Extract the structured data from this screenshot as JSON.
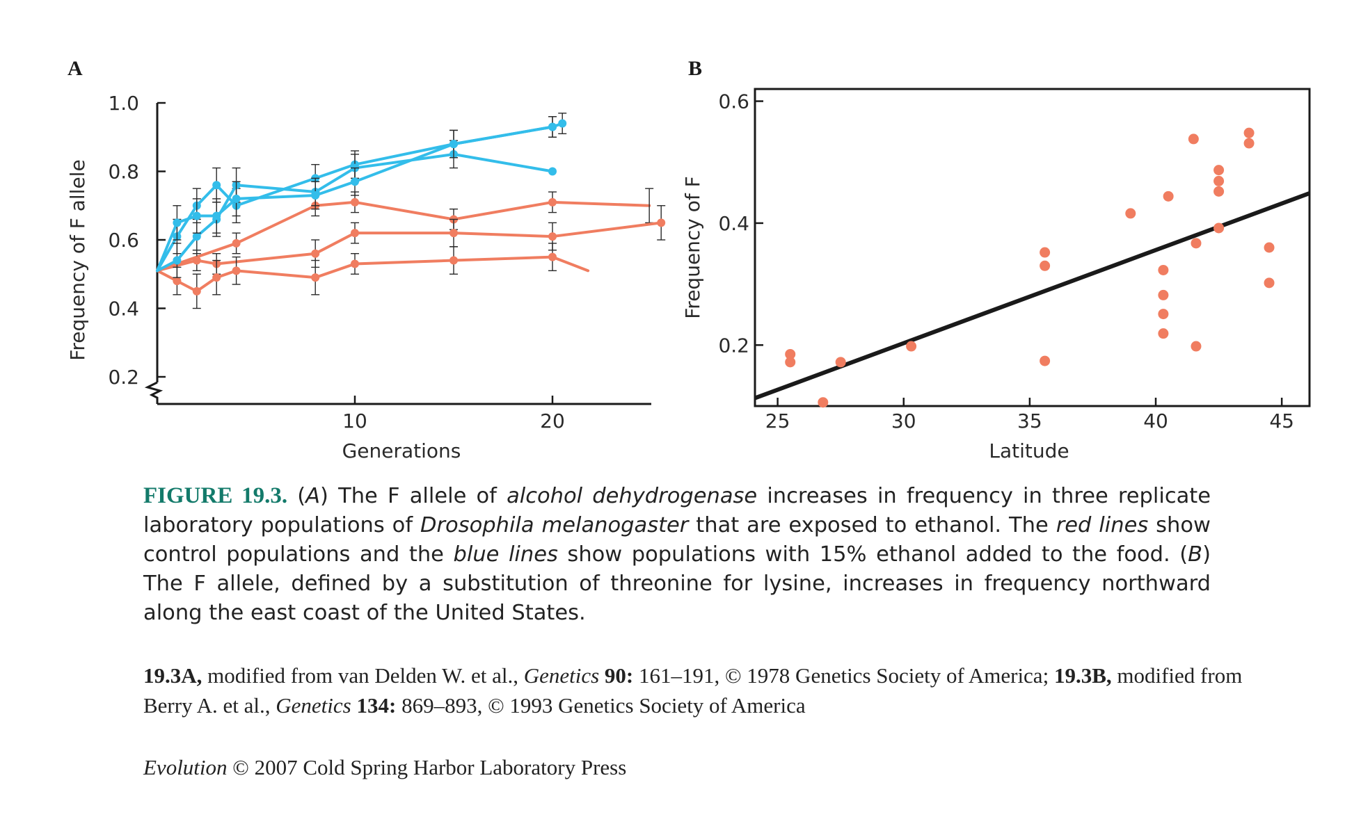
{
  "colors": {
    "red": "#f07d60",
    "blue": "#33bdea",
    "axis": "#1a1a1a",
    "fit": "#1a1a1a",
    "caption_label": "#137a6a"
  },
  "chart_data": [
    {
      "panel": "A",
      "type": "line",
      "xlabel": "Generations",
      "ylabel": "Frequency of F allele",
      "xlim": [
        0,
        25
      ],
      "ylim": [
        0.2,
        1.0
      ],
      "y_axis_break": true,
      "xticks": [
        10,
        20
      ],
      "yticks": [
        0.2,
        0.4,
        0.6,
        0.8,
        1.0
      ],
      "ytick_labels": [
        "0.2",
        "0.4",
        "0.6",
        "0.8",
        "1.0"
      ],
      "series": [
        {
          "group": "control",
          "color": "red",
          "points": [
            [
              0,
              0.51
            ],
            [
              4,
              0.59
            ],
            [
              8,
              0.7
            ],
            [
              10,
              0.71
            ],
            [
              15,
              0.66
            ],
            [
              20,
              0.71
            ],
            [
              24.9,
              0.7
            ]
          ],
          "err": [
            0,
            0.03,
            0.03,
            0.03,
            0.03,
            0.03,
            0.05
          ],
          "end_marker": false
        },
        {
          "group": "control",
          "color": "red",
          "points": [
            [
              0,
              0.51
            ],
            [
              2,
              0.54
            ],
            [
              3,
              0.53
            ],
            [
              8,
              0.56
            ],
            [
              10,
              0.62
            ],
            [
              15,
              0.62
            ],
            [
              20,
              0.61
            ],
            [
              25.5,
              0.65
            ]
          ],
          "err": [
            0,
            0.03,
            0.03,
            0.04,
            0.03,
            0.04,
            0.04,
            0.05
          ],
          "end_marker": true
        },
        {
          "group": "control",
          "color": "red",
          "points": [
            [
              0,
              0.51
            ],
            [
              1,
              0.48
            ],
            [
              2,
              0.45
            ],
            [
              3,
              0.49
            ],
            [
              4,
              0.51
            ],
            [
              8,
              0.49
            ],
            [
              10,
              0.53
            ],
            [
              15,
              0.54
            ],
            [
              20,
              0.55
            ],
            [
              21.8,
              0.51
            ]
          ],
          "err": [
            0,
            0.04,
            0.05,
            0.05,
            0.04,
            0.05,
            0.03,
            0.04,
            0.04,
            0
          ],
          "end_marker": false
        },
        {
          "group": "ethanol",
          "color": "blue",
          "points": [
            [
              0,
              0.51
            ],
            [
              1,
              0.61
            ],
            [
              2,
              0.7
            ],
            [
              3,
              0.76
            ],
            [
              4,
              0.7
            ],
            [
              8,
              0.78
            ],
            [
              10,
              0.82
            ],
            [
              15,
              0.88
            ],
            [
              20,
              0.93
            ],
            [
              20.5,
              0.94
            ]
          ],
          "err": [
            0,
            0.05,
            0.05,
            0.05,
            0.05,
            0.04,
            0.04,
            0.04,
            0.03,
            0.03
          ],
          "end_marker": true
        },
        {
          "group": "ethanol",
          "color": "blue",
          "points": [
            [
              0,
              0.51
            ],
            [
              1,
              0.54
            ],
            [
              2,
              0.61
            ],
            [
              3,
              0.66
            ],
            [
              4,
              0.76
            ],
            [
              8,
              0.74
            ],
            [
              10,
              0.81
            ],
            [
              15,
              0.85
            ],
            [
              20,
              0.8
            ]
          ],
          "err": [
            0,
            0.05,
            0.05,
            0.05,
            0.05,
            0.04,
            0.04,
            0.04,
            0
          ],
          "end_marker": true
        },
        {
          "group": "ethanol",
          "color": "blue",
          "points": [
            [
              0,
              0.51
            ],
            [
              1,
              0.65
            ],
            [
              2,
              0.67
            ],
            [
              3,
              0.67
            ],
            [
              4,
              0.72
            ],
            [
              8,
              0.73
            ],
            [
              10,
              0.77
            ],
            [
              15,
              0.88
            ],
            [
              20,
              0.93
            ]
          ],
          "err": [
            0,
            0.05,
            0.05,
            0.05,
            0.05,
            0.04,
            0.04,
            0.04,
            0.03
          ],
          "end_marker": true
        }
      ]
    },
    {
      "panel": "B",
      "type": "scatter",
      "xlabel": "Latitude",
      "ylabel": "Frequency of F",
      "xlim": [
        24.1,
        46.1
      ],
      "ylim": [
        0.1,
        0.62
      ],
      "xticks": [
        25,
        30,
        35,
        40,
        45
      ],
      "yticks": [
        0.2,
        0.4,
        0.6
      ],
      "ytick_labels": [
        "0.2",
        "0.4",
        "0.6"
      ],
      "points": [
        [
          25.5,
          0.185
        ],
        [
          25.5,
          0.172
        ],
        [
          26.8,
          0.106
        ],
        [
          27.5,
          0.172
        ],
        [
          30.3,
          0.198
        ],
        [
          35.6,
          0.352
        ],
        [
          35.6,
          0.33
        ],
        [
          35.6,
          0.174
        ],
        [
          39.0,
          0.416
        ],
        [
          40.3,
          0.323
        ],
        [
          40.3,
          0.282
        ],
        [
          40.3,
          0.251
        ],
        [
          40.3,
          0.219
        ],
        [
          40.5,
          0.444
        ],
        [
          41.5,
          0.538
        ],
        [
          41.6,
          0.367
        ],
        [
          41.6,
          0.198
        ],
        [
          42.5,
          0.487
        ],
        [
          42.5,
          0.469
        ],
        [
          42.5,
          0.452
        ],
        [
          42.5,
          0.392
        ],
        [
          43.7,
          0.548
        ],
        [
          43.7,
          0.531
        ],
        [
          44.5,
          0.36
        ],
        [
          44.5,
          0.302
        ]
      ],
      "fit_line": {
        "x": [
          24.1,
          46.1
        ],
        "y": [
          0.113,
          0.449
        ]
      }
    }
  ],
  "caption": {
    "label": "FIGURE 19.3.",
    "segments": [
      {
        "t": " (",
        "s": "n"
      },
      {
        "t": "A",
        "s": "i"
      },
      {
        "t": ") The F allele of ",
        "s": "n"
      },
      {
        "t": "alcohol dehydrogenase",
        "s": "i"
      },
      {
        "t": " increases in frequency in three replicate laboratory populations of ",
        "s": "n"
      },
      {
        "t": "Drosophila melanogaster",
        "s": "i"
      },
      {
        "t": " that are exposed to ethanol. The ",
        "s": "n"
      },
      {
        "t": "red lines",
        "s": "i"
      },
      {
        "t": " show control populations and the ",
        "s": "n"
      },
      {
        "t": "blue lines",
        "s": "i"
      },
      {
        "t": " show populations with 15% ethanol added to the food. (",
        "s": "n"
      },
      {
        "t": "B",
        "s": "i"
      },
      {
        "t": ") The F allele, defined by a substitution of threonine for lysine, increases in frequency northward along the east coast of the United States.",
        "s": "n"
      }
    ]
  },
  "credit": {
    "segments": [
      {
        "t": "19.3A,",
        "s": "b"
      },
      {
        "t": " modified from van Delden W. et al., ",
        "s": "n"
      },
      {
        "t": "Genetics",
        "s": "i"
      },
      {
        "t": " ",
        "s": "n"
      },
      {
        "t": "90:",
        "s": "b"
      },
      {
        "t": " 161–191, © 1978 Genetics Society of America; ",
        "s": "n"
      },
      {
        "t": "19.3B,",
        "s": "b"
      },
      {
        "t": " modified from Berry A. et al., ",
        "s": "n"
      },
      {
        "t": "Genetics",
        "s": "i"
      },
      {
        "t": " ",
        "s": "n"
      },
      {
        "t": "134:",
        "s": "b"
      },
      {
        "t": " 869–893, © 1993 Genetics Society of America",
        "s": "n"
      }
    ]
  },
  "footer": {
    "segments": [
      {
        "t": "Evolution",
        "s": "i"
      },
      {
        "t": " © 2007 Cold Spring Harbor Laboratory Press",
        "s": "n"
      }
    ]
  }
}
